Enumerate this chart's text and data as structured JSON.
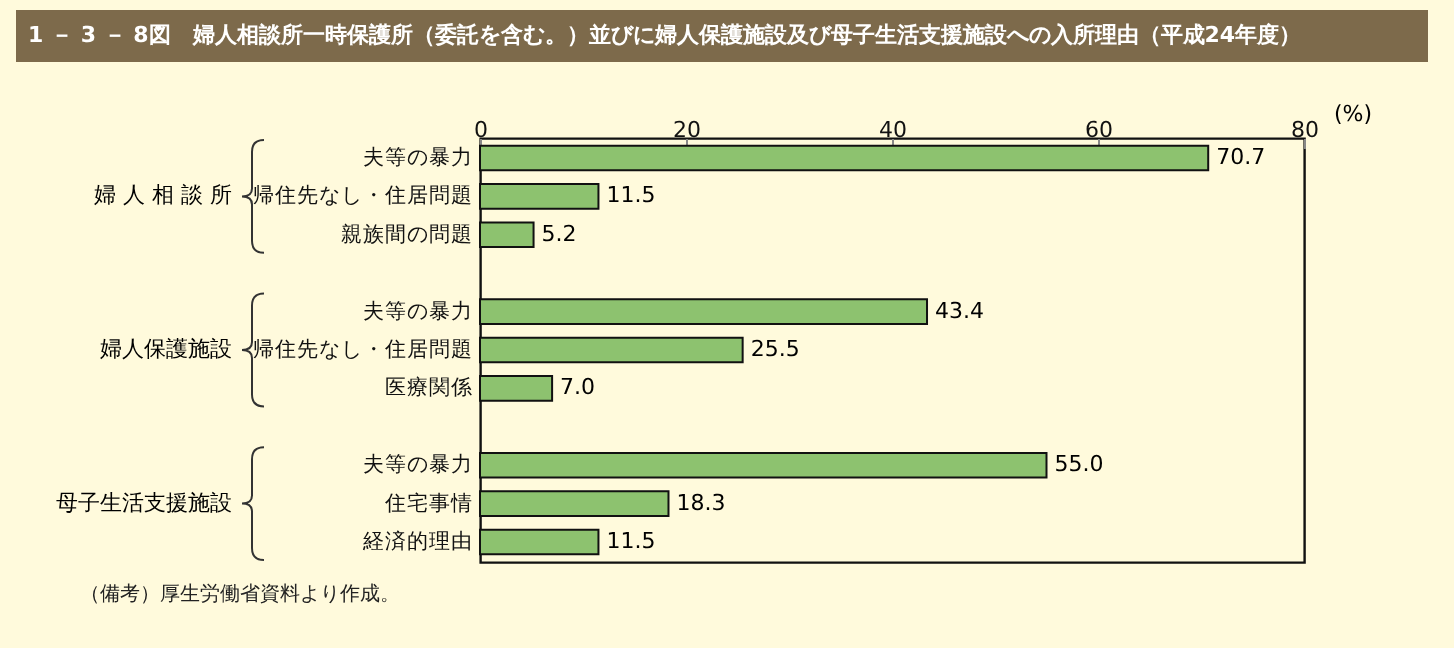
{
  "chart_data": {
    "type": "bar",
    "orientation": "horizontal",
    "title": "1 － 3 － 8図　婦人相談所一時保護所（委託を含む。）並びに婦人保護施設及び母子生活支援施設への入所理由（平成24年度）",
    "xlabel": "(%)",
    "categories": [
      "夫等の暴力",
      "帰住先なし・住居問題",
      "親族間の問題",
      "夫等の暴力",
      "帰住先なし・住居問題",
      "医療関係",
      "夫等の暴力",
      "住宅事情",
      "経済的理由"
    ],
    "values": [
      70.7,
      11.5,
      5.2,
      43.4,
      25.5,
      7.0,
      55.0,
      18.3,
      11.5
    ],
    "value_labels": [
      "70.7",
      "11.5",
      "5.2",
      "43.4",
      "25.5",
      "7.0",
      "55.0",
      "18.3",
      "11.5"
    ],
    "color": "#8dc26f",
    "xlim": [
      0,
      80
    ],
    "xticks": [
      0,
      20,
      40,
      60,
      80
    ],
    "annotations": [
      "婦 人 相 談 所",
      "婦人保護施設",
      "母子生活支援施設",
      "（備考）厚生労働省資料より作成。"
    ]
  }
}
